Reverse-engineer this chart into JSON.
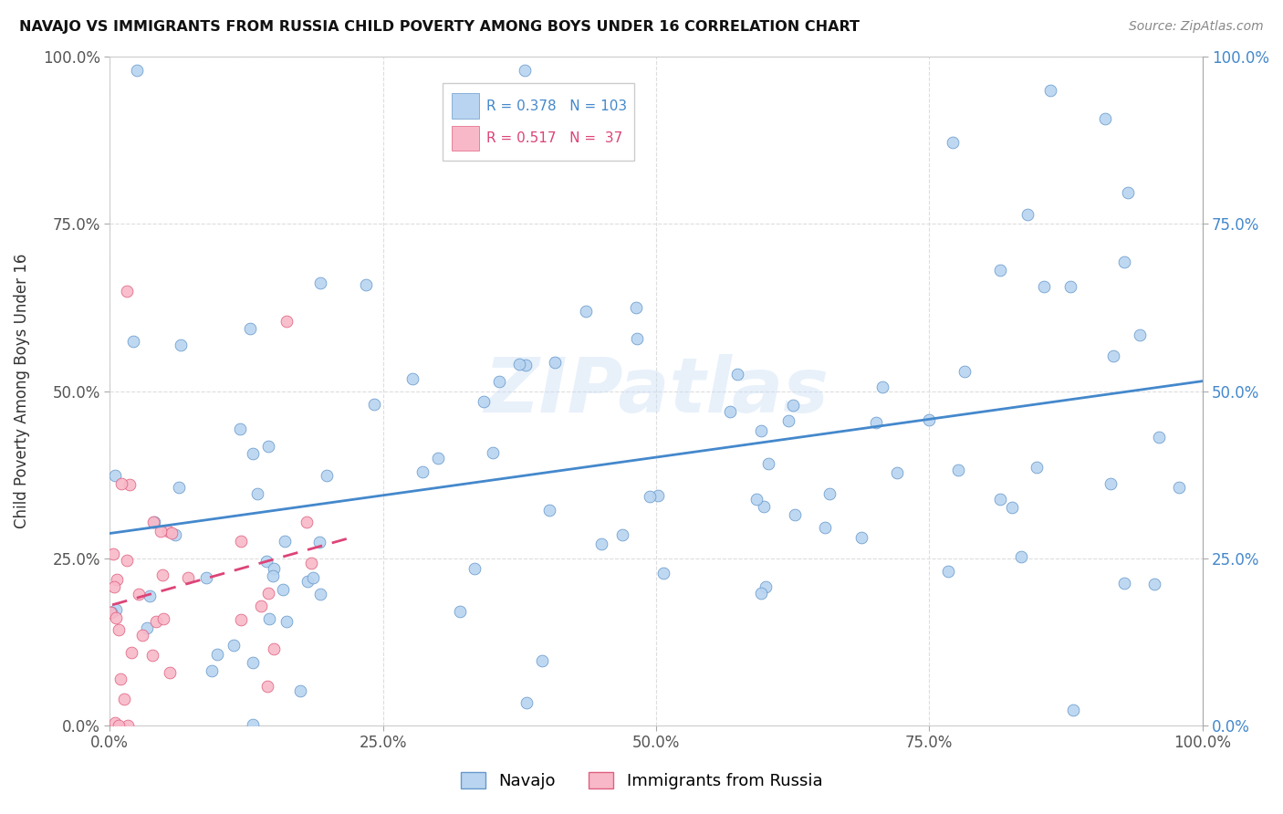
{
  "title": "NAVAJO VS IMMIGRANTS FROM RUSSIA CHILD POVERTY AMONG BOYS UNDER 16 CORRELATION CHART",
  "source": "Source: ZipAtlas.com",
  "ylabel": "Child Poverty Among Boys Under 16",
  "watermark": "ZIPatlas",
  "navajo_R": 0.378,
  "navajo_N": 103,
  "russia_R": 0.517,
  "russia_N": 37,
  "navajo_color": "#b8d4f0",
  "russia_color": "#f8b8c8",
  "navajo_edge_color": "#6699cc",
  "russia_edge_color": "#e06080",
  "navajo_line_color": "#4488cc",
  "russia_line_color": "#dd4477",
  "background_color": "#ffffff",
  "grid_color": "#dddddd",
  "legend_navajo": "Navajo",
  "legend_russia": "Immigrants from Russia",
  "right_tick_color": "#4488cc",
  "left_tick_color": "#555555"
}
